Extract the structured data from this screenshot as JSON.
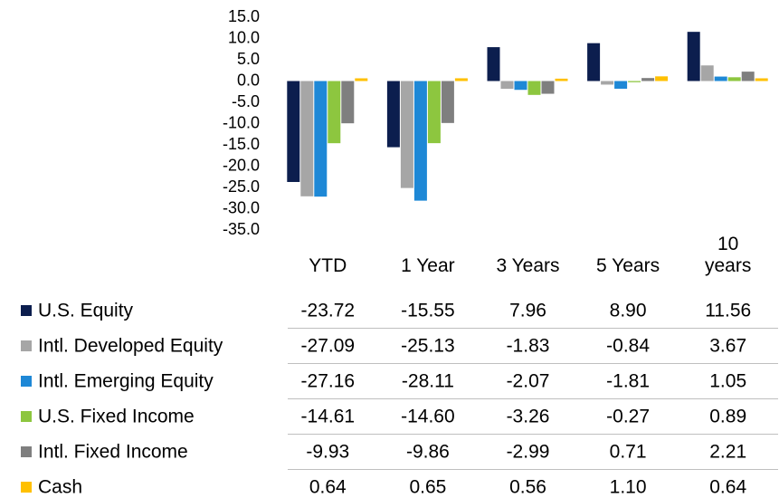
{
  "chart_data": {
    "type": "bar",
    "categories": [
      "YTD",
      "1 Year",
      "3 Years",
      "5 Years",
      "10 years"
    ],
    "ylim": [
      -35,
      15
    ],
    "yticks": [
      {
        "value": 15,
        "label": "15.0"
      },
      {
        "value": 10,
        "label": "10.0"
      },
      {
        "value": 5,
        "label": "5.0"
      },
      {
        "value": 0,
        "label": "0.0"
      },
      {
        "value": -5,
        "label": "-5.0"
      },
      {
        "value": -10,
        "label": "-10.0"
      },
      {
        "value": -15,
        "label": "-15.0"
      },
      {
        "value": -20,
        "label": "-20.0"
      },
      {
        "value": -25,
        "label": "-25.0"
      },
      {
        "value": -30,
        "label": "-30.0"
      },
      {
        "value": -35,
        "label": "-35.0"
      }
    ],
    "grid": false,
    "series": [
      {
        "name": "U.S. Equity",
        "color": "#0c1e4e",
        "values": [
          -23.72,
          -15.55,
          7.96,
          8.9,
          11.56
        ],
        "value_labels": [
          "-23.72",
          "-15.55",
          "7.96",
          "8.90",
          "11.56"
        ]
      },
      {
        "name": "Intl. Developed Equity",
        "color": "#a6a6a6",
        "values": [
          -27.09,
          -25.13,
          -1.83,
          -0.84,
          3.67
        ],
        "value_labels": [
          "-27.09",
          "-25.13",
          "-1.83",
          "-0.84",
          "3.67"
        ]
      },
      {
        "name": "Intl. Emerging Equity",
        "color": "#1e88d6",
        "values": [
          -27.16,
          -28.11,
          -2.07,
          -1.81,
          1.05
        ],
        "value_labels": [
          "-27.16",
          "-28.11",
          "-2.07",
          "-1.81",
          "1.05"
        ]
      },
      {
        "name": "U.S. Fixed Income",
        "color": "#8dc63f",
        "values": [
          -14.61,
          -14.6,
          -3.26,
          -0.27,
          0.89
        ],
        "value_labels": [
          "-14.61",
          "-14.60",
          "-3.26",
          "-0.27",
          "0.89"
        ]
      },
      {
        "name": "Intl. Fixed Income",
        "color": "#7f7f7f",
        "values": [
          -9.93,
          -9.86,
          -2.99,
          0.71,
          2.21
        ],
        "value_labels": [
          "-9.93",
          "-9.86",
          "-2.99",
          "0.71",
          "2.21"
        ]
      },
      {
        "name": "Cash",
        "color": "#ffc000",
        "values": [
          0.64,
          0.65,
          0.56,
          1.1,
          0.64
        ],
        "value_labels": [
          "0.64",
          "0.65",
          "0.56",
          "1.10",
          "0.64"
        ]
      }
    ]
  }
}
